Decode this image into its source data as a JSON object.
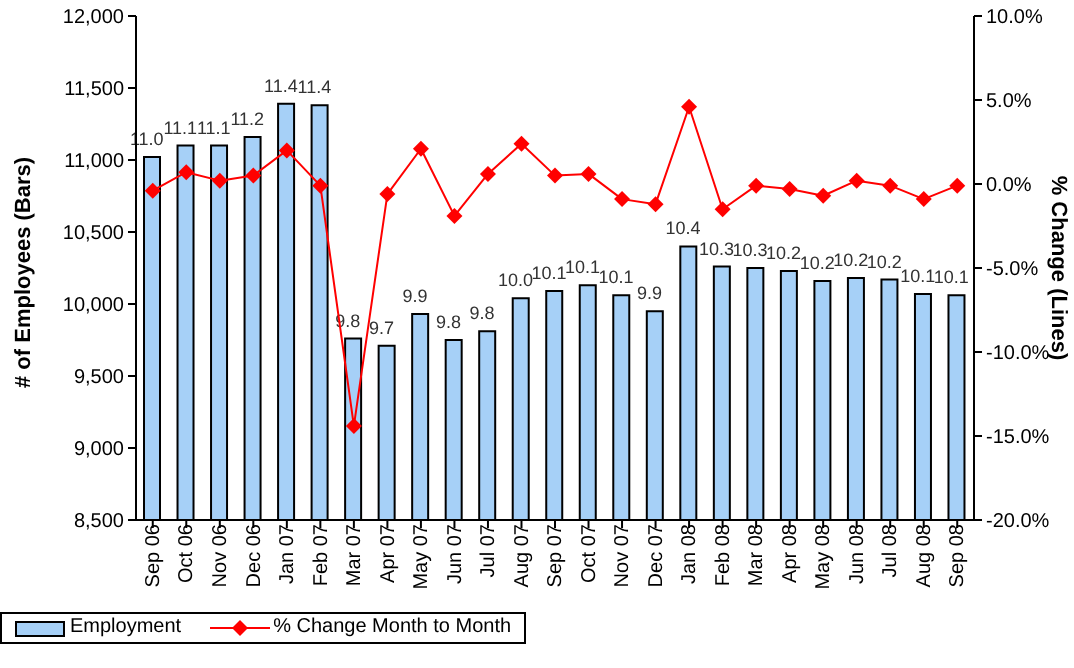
{
  "chart_data": {
    "type": "bar",
    "ylabel": "# of Employees (Bars)",
    "y2label": "% Change (Lines)",
    "categories": [
      "Sep 06",
      "Oct 06",
      "Nov 06",
      "Dec 06",
      "Jan 07",
      "Feb 07",
      "Mar 07",
      "Apr 07",
      "May 07",
      "Jun 07",
      "Jul 07",
      "Aug 07",
      "Sep 07",
      "Oct 07",
      "Nov 07",
      "Dec 07",
      "Jan 08",
      "Feb 08",
      "Mar 08",
      "Apr 08",
      "May 08",
      "Jun 08",
      "Jul 08",
      "Aug 08",
      "Sep 08"
    ],
    "series": [
      {
        "name": "Employment",
        "color": "#a6d0f7",
        "values": [
          11020,
          11100,
          11100,
          11160,
          11390,
          11380,
          9760,
          9710,
          9930,
          9750,
          9810,
          10040,
          10090,
          10130,
          10060,
          9950,
          10400,
          10260,
          10250,
          10230,
          10160,
          10180,
          10170,
          10070,
          10060
        ]
      },
      {
        "name": "% Change Month to Month",
        "type": "line",
        "axis": "y2",
        "color": "#ff0000",
        "marker": "diamond",
        "values": [
          -0.4,
          0.7,
          0.2,
          0.5,
          2.0,
          -0.1,
          -14.4,
          -0.6,
          2.1,
          -1.9,
          0.6,
          2.4,
          0.5,
          0.6,
          -0.9,
          -1.2,
          4.6,
          -1.5,
          -0.1,
          -0.3,
          -0.7,
          0.2,
          -0.1,
          -0.9,
          -0.1
        ]
      }
    ],
    "annotations": [
      {
        "text": "11.0",
        "x": "Sep 06",
        "y": 11020
      },
      {
        "text": "11.1",
        "x": "Oct 06",
        "y": 11100
      },
      {
        "text": "11.1",
        "x": "Nov 06",
        "y": 11100
      },
      {
        "text": "11.2",
        "x": "Dec 06",
        "y": 11160
      },
      {
        "text": "11.4",
        "x": "Jan 07",
        "y": 11390
      },
      {
        "text": "11.4",
        "x": "Feb 07",
        "y": 11380
      },
      {
        "text": "9.8",
        "x": "Mar 07",
        "y": 9760
      },
      {
        "text": "9.7",
        "x": "Apr 07",
        "y": 9710
      },
      {
        "text": "9.9",
        "x": "May 07",
        "y": 9930
      },
      {
        "text": "9.8",
        "x": "Jun 07",
        "y": 9750
      },
      {
        "text": "9.8",
        "x": "Jul 07",
        "y": 9810
      },
      {
        "text": "10.0",
        "x": "Aug 07",
        "y": 10040
      },
      {
        "text": "10.1",
        "x": "Sep 07",
        "y": 10090
      },
      {
        "text": "10.1",
        "x": "Oct 07",
        "y": 10130
      },
      {
        "text": "10.1",
        "x": "Nov 07",
        "y": 10060
      },
      {
        "text": "9.9",
        "x": "Dec 07",
        "y": 9950
      },
      {
        "text": "10.4",
        "x": "Jan 08",
        "y": 10400
      },
      {
        "text": "10.3",
        "x": "Feb 08",
        "y": 10260
      },
      {
        "text": "10.3",
        "x": "Mar 08",
        "y": 10250
      },
      {
        "text": "10.2",
        "x": "Apr 08",
        "y": 10230
      },
      {
        "text": "10.2",
        "x": "May 08",
        "y": 10160
      },
      {
        "text": "10.2",
        "x": "Jun 08",
        "y": 10180
      },
      {
        "text": "10.2",
        "x": "Jul 08",
        "y": 10170
      },
      {
        "text": "10.1",
        "x": "Aug 08",
        "y": 10070
      },
      {
        "text": "10.1",
        "x": "Sep 08",
        "y": 10060
      }
    ],
    "ylim": [
      8500,
      12000
    ],
    "yticks": [
      {
        "value": 8500,
        "label": "8,500"
      },
      {
        "value": 9000,
        "label": "9,000"
      },
      {
        "value": 9500,
        "label": "9,500"
      },
      {
        "value": 10000,
        "label": "10,000"
      },
      {
        "value": 10500,
        "label": "10,500"
      },
      {
        "value": 11000,
        "label": "11,000"
      },
      {
        "value": 11500,
        "label": "11,500"
      },
      {
        "value": 12000,
        "label": "12,000"
      }
    ],
    "y2lim": [
      -20,
      10
    ],
    "y2ticks": [
      {
        "value": -20,
        "label": "-20.0%"
      },
      {
        "value": -15,
        "label": "-15.0%"
      },
      {
        "value": -10,
        "label": "-10.0%"
      },
      {
        "value": -5,
        "label": "-5.0%"
      },
      {
        "value": 0,
        "label": "0.0%"
      },
      {
        "value": 5,
        "label": "5.0%"
      },
      {
        "value": 10,
        "label": "10.0%"
      }
    ],
    "grid": false,
    "legend": "bottom"
  }
}
